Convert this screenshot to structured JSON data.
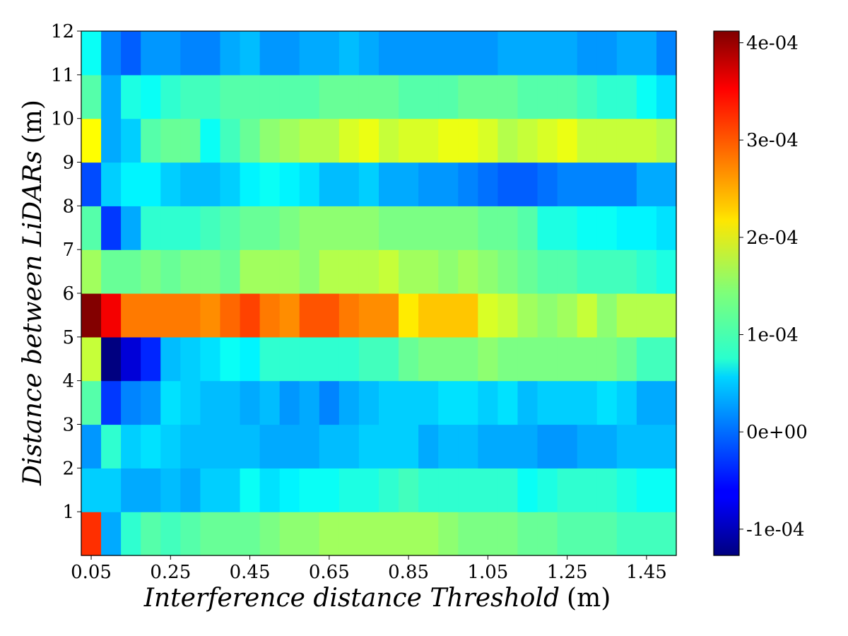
{
  "chart_data": {
    "type": "heatmap",
    "xlabel": "Interference distance Threshold",
    "xlabel_unit": "(m)",
    "ylabel": "Distance between LiDARs",
    "ylabel_unit": "(m)",
    "x": [
      0.05,
      0.1,
      0.15,
      0.2,
      0.25,
      0.3,
      0.35,
      0.4,
      0.45,
      0.5,
      0.55,
      0.6,
      0.65,
      0.7,
      0.75,
      0.8,
      0.85,
      0.9,
      0.95,
      1.0,
      1.05,
      1.1,
      1.15,
      1.2,
      1.25,
      1.3,
      1.35,
      1.4,
      1.45,
      1.5
    ],
    "y": [
      0.5,
      1.5,
      2.5,
      3.5,
      4.5,
      5.5,
      6.5,
      7.5,
      8.5,
      9.5,
      10.5,
      11.5
    ],
    "x_ticks": [
      "0.05",
      "0.25",
      "0.45",
      "0.65",
      "0.85",
      "1.05",
      "1.25",
      "1.45"
    ],
    "x_tick_values": [
      0.05,
      0.25,
      0.45,
      0.65,
      0.85,
      1.05,
      1.25,
      1.45
    ],
    "y_ticks": [
      "1",
      "2",
      "3",
      "4",
      "5",
      "6",
      "7",
      "8",
      "9",
      "10",
      "11",
      "12"
    ],
    "y_tick_values": [
      1,
      2,
      3,
      4,
      5,
      6,
      7,
      8,
      9,
      10,
      11,
      12
    ],
    "ylim": [
      0,
      12
    ],
    "colorbar": {
      "ticks": [
        "-1e-04",
        "0e+00",
        "1e-04",
        "2e-04",
        "3e-04",
        "4e-04"
      ],
      "tick_values": [
        -0.0001,
        0.0,
        0.0001,
        0.0002,
        0.0003,
        0.0004
      ],
      "vmin": -0.000127,
      "vmax": 0.000412,
      "colormap": "jet"
    },
    "values": [
      [
        0.00032,
        3e-05,
        0.0001,
        0.00012,
        0.00011,
        0.00012,
        0.00013,
        0.00013,
        0.00013,
        0.00014,
        0.00015,
        0.00015,
        0.00016,
        0.00016,
        0.00016,
        0.00016,
        0.00016,
        0.00016,
        0.00015,
        0.00014,
        0.00014,
        0.00014,
        0.00013,
        0.00013,
        0.00012,
        0.00012,
        0.00012,
        0.00011,
        0.00011,
        0.00011
      ],
      [
        5e-05,
        5e-05,
        3e-05,
        3e-05,
        4e-05,
        3e-05,
        5e-05,
        5e-05,
        8e-05,
        6e-05,
        7e-05,
        8e-05,
        8e-05,
        9e-05,
        9e-05,
        0.0001,
        0.00011,
        0.0001,
        0.0001,
        0.0001,
        0.0001,
        0.0001,
        8e-05,
        9e-05,
        0.0001,
        0.0001,
        0.0001,
        9e-05,
        8e-05,
        8e-05
      ],
      [
        2e-05,
        0.0001,
        5e-05,
        6e-05,
        5e-05,
        4e-05,
        4e-05,
        4e-05,
        4e-05,
        3e-05,
        3e-05,
        3e-05,
        4e-05,
        4e-05,
        5e-05,
        5e-05,
        5e-05,
        3e-05,
        4e-05,
        4e-05,
        3e-05,
        3e-05,
        3e-05,
        2e-05,
        2e-05,
        3e-05,
        3e-05,
        4e-05,
        4e-05,
        4e-05
      ],
      [
        0.00012,
        -3e-05,
        1e-05,
        2e-05,
        6e-05,
        5e-05,
        4e-05,
        4e-05,
        3e-05,
        4e-05,
        2e-05,
        3e-05,
        1e-05,
        3e-05,
        4e-05,
        5e-05,
        5e-05,
        5e-05,
        6e-05,
        6e-05,
        5e-05,
        6e-05,
        4e-05,
        5e-05,
        5e-05,
        5e-05,
        6e-05,
        5e-05,
        3e-05,
        3e-05
      ],
      [
        0.00018,
        -0.00013,
        -8e-05,
        -4e-05,
        4e-05,
        5e-05,
        6e-05,
        8e-05,
        7e-05,
        0.0001,
        0.0001,
        0.0001,
        0.0001,
        0.0001,
        0.00011,
        0.00011,
        0.00013,
        0.00014,
        0.00014,
        0.00014,
        0.00015,
        0.00014,
        0.00014,
        0.00014,
        0.00014,
        0.00014,
        0.00014,
        0.00013,
        0.00011,
        0.00011
      ],
      [
        0.00041,
        0.00035,
        0.00028,
        0.00028,
        0.00028,
        0.00028,
        0.00027,
        0.00029,
        0.00031,
        0.00028,
        0.00027,
        0.0003,
        0.0003,
        0.00028,
        0.00027,
        0.00027,
        0.00022,
        0.00024,
        0.00024,
        0.00024,
        0.00019,
        0.00018,
        0.00016,
        0.00015,
        0.00016,
        0.00018,
        0.00015,
        0.00017,
        0.00017,
        0.00017
      ],
      [
        0.00016,
        0.00013,
        0.00013,
        0.00014,
        0.00013,
        0.00014,
        0.00014,
        0.00013,
        0.00016,
        0.00016,
        0.00016,
        0.00015,
        0.00017,
        0.00017,
        0.00017,
        0.00018,
        0.00016,
        0.00016,
        0.00015,
        0.00016,
        0.00015,
        0.00014,
        0.00013,
        0.00012,
        0.00012,
        0.00011,
        0.00011,
        0.00011,
        0.0001,
        9e-05
      ],
      [
        0.00012,
        -3e-05,
        3e-05,
        0.0001,
        0.0001,
        0.0001,
        0.00011,
        0.00012,
        0.00013,
        0.00013,
        0.00014,
        0.00015,
        0.00015,
        0.00015,
        0.00015,
        0.00014,
        0.00014,
        0.00014,
        0.00014,
        0.00014,
        0.00013,
        0.00013,
        0.00012,
        9e-05,
        9e-05,
        8e-05,
        8e-05,
        7e-05,
        7e-05,
        6e-05
      ],
      [
        -2e-05,
        5e-05,
        7e-05,
        7e-05,
        5e-05,
        4e-05,
        4e-05,
        5e-05,
        7e-05,
        8e-05,
        7e-05,
        6e-05,
        4e-05,
        4e-05,
        5e-05,
        3e-05,
        3e-05,
        2e-05,
        2e-05,
        1e-05,
        0.0,
        -1e-05,
        -1e-05,
        0.0,
        1e-05,
        1e-05,
        1e-05,
        1e-05,
        3e-05,
        3e-05
      ],
      [
        0.00021,
        3e-05,
        5e-05,
        0.00012,
        0.00013,
        0.00013,
        8e-05,
        0.00011,
        0.00013,
        0.00015,
        0.00016,
        0.00017,
        0.00017,
        0.00019,
        0.0002,
        0.00018,
        0.00019,
        0.00019,
        0.0002,
        0.0002,
        0.00019,
        0.00017,
        0.00018,
        0.00019,
        0.0002,
        0.00018,
        0.00018,
        0.00018,
        0.00018,
        0.00017
      ],
      [
        0.00012,
        3e-05,
        9e-05,
        8e-05,
        0.0001,
        0.00011,
        0.00011,
        0.00012,
        0.00012,
        0.00012,
        0.00012,
        0.00012,
        0.00013,
        0.00013,
        0.00013,
        0.00013,
        0.00012,
        0.00012,
        0.00012,
        0.00013,
        0.00013,
        0.00013,
        0.00012,
        0.00012,
        0.00012,
        0.00011,
        0.0001,
        0.0001,
        8e-05,
        6e-05
      ],
      [
        8e-05,
        1e-05,
        -1e-05,
        2e-05,
        2e-05,
        1e-05,
        1e-05,
        3e-05,
        4e-05,
        2e-05,
        2e-05,
        3e-05,
        3e-05,
        4e-05,
        3e-05,
        2e-05,
        2e-05,
        2e-05,
        2e-05,
        2e-05,
        2e-05,
        3e-05,
        3e-05,
        3e-05,
        3e-05,
        2e-05,
        2e-05,
        3e-05,
        3e-05,
        1e-05
      ]
    ]
  }
}
